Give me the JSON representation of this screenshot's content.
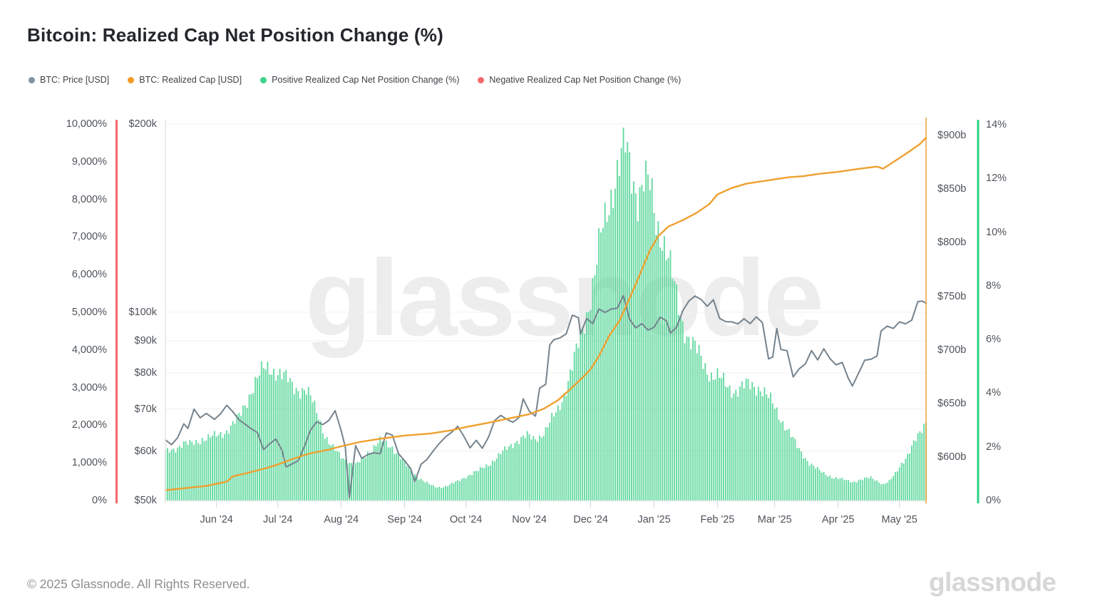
{
  "title": "Bitcoin: Realized Cap Net Position Change (%)",
  "watermark": {
    "text": "glassnode"
  },
  "footer": {
    "copyright": "© 2025 Glassnode. All Rights Reserved.",
    "logo": "glassnode"
  },
  "legend": {
    "items": [
      {
        "label": "BTC: Price [USD]",
        "color": "#8193a0"
      },
      {
        "label": "BTC: Realized Cap [USD]",
        "color": "#f49a28"
      },
      {
        "label": "Positive Realized Cap Net Position Change (%)",
        "color": "#3ed28c"
      },
      {
        "label": "Negative Realized Cap Net Position Change (%)",
        "color": "#f4696a"
      }
    ]
  },
  "chart_data": {
    "type": "mixed-bar-line",
    "x_axis": {
      "tick_labels": [
        "Jun '24",
        "Jul '24",
        "Aug '24",
        "Sep '24",
        "Oct '24",
        "Nov '24",
        "Dec '24",
        "Jan '25",
        "Feb '25",
        "Mar '25",
        "Apr '25",
        "May '25"
      ],
      "tick_day_offsets": [
        25,
        55,
        86,
        117,
        147,
        178,
        208,
        239,
        270,
        298,
        329,
        359
      ],
      "days_total": 372
    },
    "axes": {
      "left_percent": {
        "tick_labels": [
          "10,000%",
          "9,000%",
          "8,000%",
          "7,000%",
          "6,000%",
          "5,000%",
          "4,000%",
          "3,000%",
          "2,000%",
          "1,000%",
          "0%"
        ],
        "tick_values": [
          10000,
          9000,
          8000,
          7000,
          6000,
          5000,
          4000,
          3000,
          2000,
          1000,
          0
        ],
        "range": [
          0,
          10000
        ],
        "axis_color": "#f4696a"
      },
      "price": {
        "tick_labels": [
          "$200k",
          "$100k",
          "$90k",
          "$80k",
          "$70k",
          "$60k",
          "$50k"
        ],
        "tick_values_usd_k": [
          200,
          100,
          90,
          80,
          70,
          60,
          50
        ],
        "scale": "log",
        "range_usd_k": [
          50,
          200
        ],
        "axis_color": "#e6e6e6"
      },
      "realized_cap": {
        "tick_labels": [
          "$900b",
          "$850b",
          "$800b",
          "$750b",
          "$700b",
          "$650b",
          "$600b"
        ],
        "tick_values_usd_b": [
          900,
          850,
          800,
          750,
          700,
          650,
          600
        ],
        "axis_color": "#f0a13a"
      },
      "right_percent": {
        "tick_labels": [
          "14%",
          "12%",
          "10%",
          "8%",
          "6%",
          "4%",
          "2%",
          "0%"
        ],
        "tick_values": [
          14,
          12,
          10,
          8,
          6,
          4,
          2,
          0
        ],
        "range": [
          0,
          14
        ],
        "axis_color": "#2ed286"
      }
    },
    "series": [
      {
        "name": "Positive Realized Cap Net Position Change (%)",
        "type": "bar",
        "axis": "right_percent",
        "color": "#4bd392",
        "sample_interval_days": 3,
        "values": [
          1.8,
          1.9,
          2.0,
          2.1,
          2.1,
          2.2,
          2.3,
          2.3,
          2.4,
          2.5,
          2.6,
          2.8,
          3.1,
          3.6,
          4.1,
          4.5,
          4.9,
          5.0,
          4.8,
          4.6,
          4.5,
          4.3,
          4.1,
          4.0,
          3.7,
          3.2,
          2.4,
          2.0,
          1.8,
          1.6,
          1.4,
          1.3,
          1.5,
          1.8,
          2.0,
          2.2,
          2.1,
          2.0,
          1.7,
          1.4,
          1.1,
          0.9,
          0.75,
          0.6,
          0.5,
          0.5,
          0.55,
          0.65,
          0.75,
          0.9,
          1.0,
          1.1,
          1.25,
          1.4,
          1.6,
          1.8,
          2.0,
          2.2,
          2.3,
          2.4,
          2.3,
          2.4,
          2.6,
          3.0,
          3.4,
          4.0,
          4.7,
          5.5,
          6.4,
          7.3,
          8.4,
          9.8,
          10.8,
          11.8,
          12.5,
          13.1,
          12.2,
          11.4,
          11.9,
          11.6,
          10.4,
          9.9,
          9.0,
          7.9,
          6.9,
          6.2,
          5.8,
          5.4,
          5.0,
          4.7,
          4.6,
          4.4,
          4.2,
          4.1,
          4.2,
          4.3,
          4.3,
          4.2,
          3.9,
          3.6,
          3.2,
          2.8,
          2.4,
          2.0,
          1.7,
          1.4,
          1.2,
          1.05,
          0.95,
          0.85,
          0.8,
          0.75,
          0.7,
          0.75,
          0.8,
          0.85,
          0.75,
          0.6,
          0.7,
          1.0,
          1.4,
          1.7,
          2.1,
          2.5,
          3.0
        ]
      },
      {
        "name": "BTC: Price [USD]",
        "type": "line",
        "axis": "price",
        "color": "#75838e",
        "unit": "USD (thousands)",
        "points": [
          [
            0,
            62.5
          ],
          [
            3,
            61.4
          ],
          [
            6,
            63
          ],
          [
            9,
            66.3
          ],
          [
            11,
            65.2
          ],
          [
            14,
            70
          ],
          [
            17,
            67.8
          ],
          [
            20,
            68.9
          ],
          [
            24,
            67.4
          ],
          [
            27,
            68.8
          ],
          [
            30,
            71
          ],
          [
            33,
            69.3
          ],
          [
            36,
            67.3
          ],
          [
            39,
            66.2
          ],
          [
            42,
            65.1
          ],
          [
            45,
            64.2
          ],
          [
            48,
            60.3
          ],
          [
            51,
            61.6
          ],
          [
            54,
            62.7
          ],
          [
            57,
            60.2
          ],
          [
            59,
            56.6
          ],
          [
            62,
            57.2
          ],
          [
            65,
            57.9
          ],
          [
            68,
            61
          ],
          [
            71,
            64.8
          ],
          [
            74,
            66.8
          ],
          [
            77,
            66.1
          ],
          [
            80,
            67.2
          ],
          [
            83,
            69.6
          ],
          [
            86,
            64.6
          ],
          [
            88,
            60.8
          ],
          [
            90,
            50.5
          ],
          [
            93,
            61.2
          ],
          [
            96,
            58.4
          ],
          [
            99,
            59.2
          ],
          [
            102,
            59.6
          ],
          [
            105,
            59.4
          ],
          [
            108,
            64.1
          ],
          [
            111,
            63.6
          ],
          [
            114,
            59.4
          ],
          [
            117,
            57.9
          ],
          [
            120,
            56.2
          ],
          [
            122,
            53.6
          ],
          [
            125,
            57.1
          ],
          [
            128,
            58.2
          ],
          [
            131,
            60
          ],
          [
            134,
            61.7
          ],
          [
            137,
            63.2
          ],
          [
            140,
            64.3
          ],
          [
            143,
            65.7
          ],
          [
            146,
            63.3
          ],
          [
            149,
            60.7
          ],
          [
            152,
            62.4
          ],
          [
            155,
            60.6
          ],
          [
            158,
            63.1
          ],
          [
            161,
            67.1
          ],
          [
            164,
            68.4
          ],
          [
            167,
            67.4
          ],
          [
            170,
            66.7
          ],
          [
            173,
            67.9
          ],
          [
            175,
            72.7
          ],
          [
            178,
            69.4
          ],
          [
            181,
            68.2
          ],
          [
            183,
            75.6
          ],
          [
            186,
            76.7
          ],
          [
            188,
            88.7
          ],
          [
            190,
            90.4
          ],
          [
            193,
            91
          ],
          [
            196,
            92.3
          ],
          [
            199,
            98.9
          ],
          [
            202,
            98
          ],
          [
            203,
            92.3
          ],
          [
            206,
            97.7
          ],
          [
            209,
            95.9
          ],
          [
            212,
            101.2
          ],
          [
            215,
            99.9
          ],
          [
            218,
            101.2
          ],
          [
            221,
            101.5
          ],
          [
            224,
            106.3
          ],
          [
            227,
            97.5
          ],
          [
            230,
            94.4
          ],
          [
            233,
            95.9
          ],
          [
            236,
            93.6
          ],
          [
            239,
            94.6
          ],
          [
            242,
            98.2
          ],
          [
            245,
            96.9
          ],
          [
            247,
            92.6
          ],
          [
            250,
            94.6
          ],
          [
            253,
            100.5
          ],
          [
            256,
            104.2
          ],
          [
            259,
            106.1
          ],
          [
            262,
            104.8
          ],
          [
            265,
            102.2
          ],
          [
            268,
            104.7
          ],
          [
            271,
            97.8
          ],
          [
            274,
            96.6
          ],
          [
            277,
            96.5
          ],
          [
            280,
            95.8
          ],
          [
            283,
            97.6
          ],
          [
            286,
            95.9
          ],
          [
            289,
            98.3
          ],
          [
            292,
            96.2
          ],
          [
            295,
            84.2
          ],
          [
            297,
            84.8
          ],
          [
            299,
            94.2
          ],
          [
            301,
            87.2
          ],
          [
            304,
            86.8
          ],
          [
            307,
            78.8
          ],
          [
            310,
            81.2
          ],
          [
            313,
            82.7
          ],
          [
            316,
            86.8
          ],
          [
            319,
            83.9
          ],
          [
            322,
            87.4
          ],
          [
            325,
            84.3
          ],
          [
            328,
            82.4
          ],
          [
            331,
            83.1
          ],
          [
            334,
            78.4
          ],
          [
            336,
            76.2
          ],
          [
            339,
            79.9
          ],
          [
            342,
            83.8
          ],
          [
            345,
            84.1
          ],
          [
            348,
            85.1
          ],
          [
            350,
            93.3
          ],
          [
            353,
            95
          ],
          [
            356,
            94.2
          ],
          [
            359,
            96.5
          ],
          [
            362,
            95.8
          ],
          [
            365,
            97.1
          ],
          [
            368,
            104
          ],
          [
            370,
            104.2
          ],
          [
            372,
            103.4
          ]
        ]
      },
      {
        "name": "BTC: Realized Cap [USD]",
        "type": "line",
        "axis": "realized_cap",
        "color": "#efa02f",
        "unit": "USD (billions)",
        "points": [
          [
            0,
            569
          ],
          [
            10,
            571
          ],
          [
            20,
            573
          ],
          [
            25,
            575
          ],
          [
            30,
            577
          ],
          [
            33,
            582
          ],
          [
            40,
            585
          ],
          [
            50,
            590
          ],
          [
            55,
            593
          ],
          [
            62,
            598
          ],
          [
            70,
            603
          ],
          [
            80,
            607
          ],
          [
            86,
            610
          ],
          [
            95,
            614
          ],
          [
            105,
            617
          ],
          [
            117,
            620
          ],
          [
            130,
            622
          ],
          [
            140,
            625
          ],
          [
            147,
            628
          ],
          [
            158,
            632
          ],
          [
            168,
            636
          ],
          [
            178,
            640
          ],
          [
            185,
            645
          ],
          [
            192,
            653
          ],
          [
            199,
            665
          ],
          [
            205,
            676
          ],
          [
            208,
            682
          ],
          [
            212,
            694
          ],
          [
            217,
            713
          ],
          [
            222,
            727
          ],
          [
            227,
            748
          ],
          [
            232,
            770
          ],
          [
            237,
            793
          ],
          [
            241,
            806
          ],
          [
            246,
            815
          ],
          [
            253,
            821
          ],
          [
            260,
            828
          ],
          [
            266,
            836
          ],
          [
            270,
            845
          ],
          [
            277,
            851
          ],
          [
            284,
            855
          ],
          [
            291,
            857
          ],
          [
            298,
            859
          ],
          [
            305,
            861
          ],
          [
            312,
            862
          ],
          [
            319,
            864
          ],
          [
            329,
            866
          ],
          [
            336,
            868
          ],
          [
            344,
            870
          ],
          [
            348,
            871
          ],
          [
            351,
            869
          ],
          [
            355,
            874
          ],
          [
            359,
            879
          ],
          [
            363,
            884
          ],
          [
            366,
            888
          ],
          [
            369,
            892
          ],
          [
            372,
            898
          ]
        ]
      },
      {
        "name": "Negative Realized Cap Net Position Change (%)",
        "type": "bar",
        "axis": "left_percent",
        "color": "#f4696a",
        "values": []
      }
    ]
  }
}
